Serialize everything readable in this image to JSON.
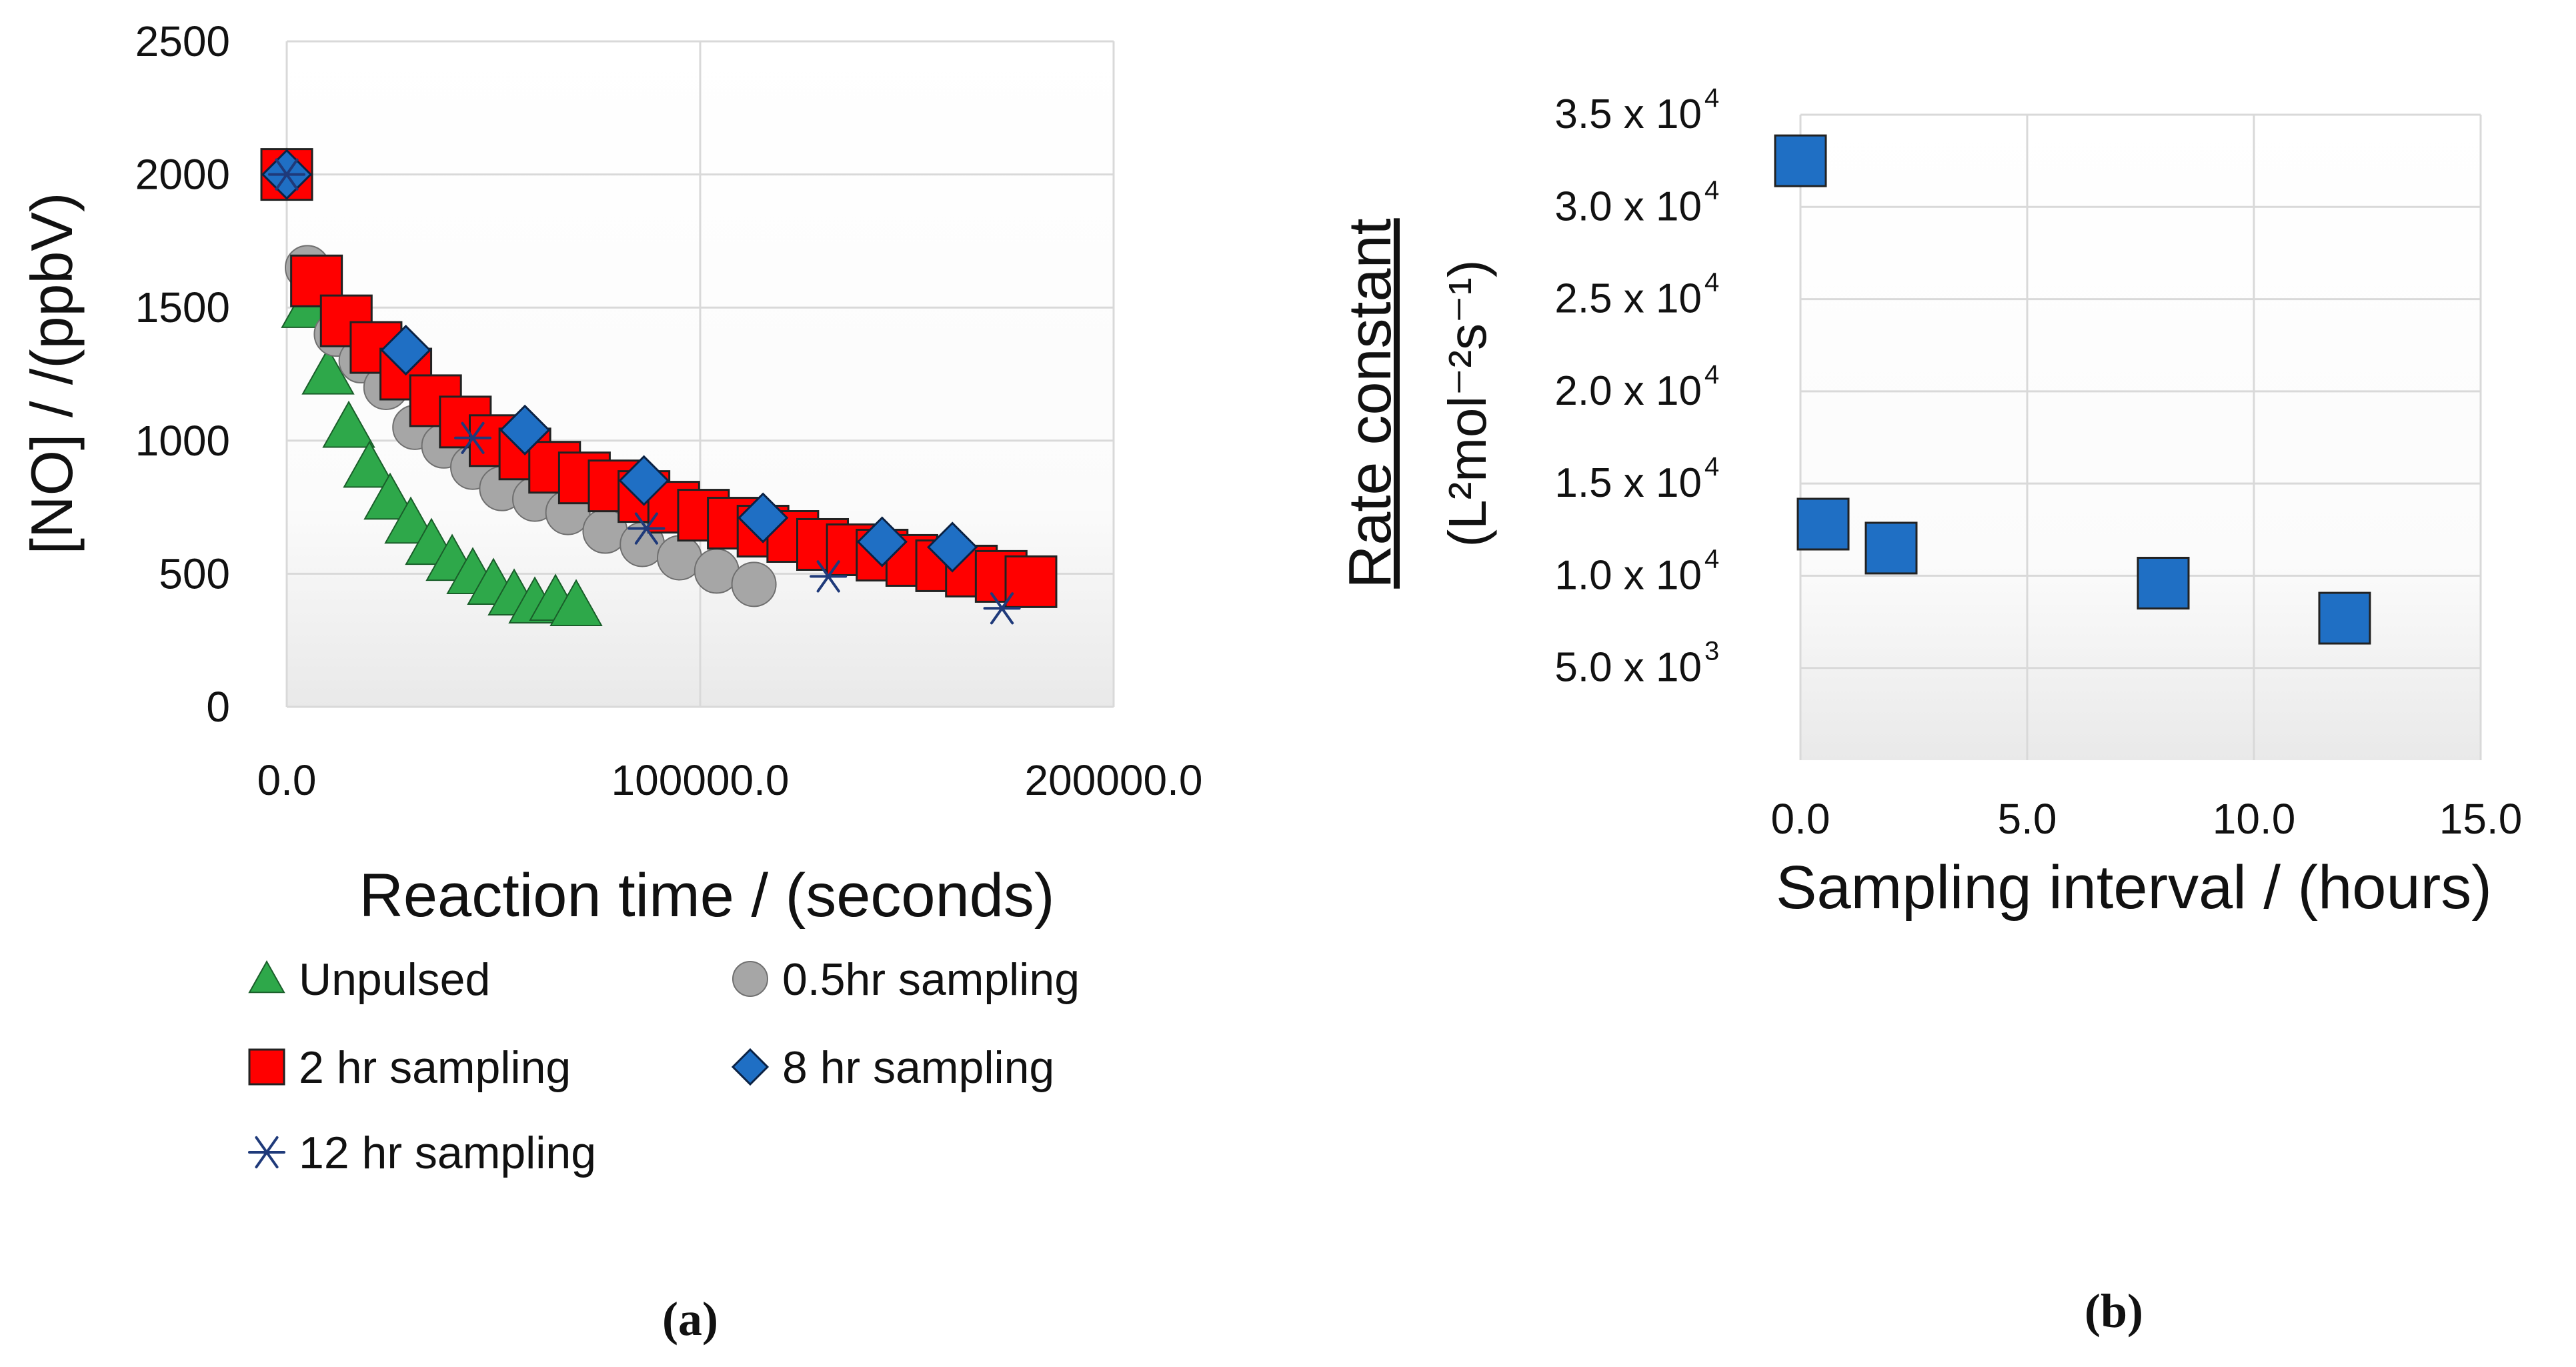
{
  "chart_data": [
    {
      "type": "scatter",
      "panel_label": "(a)",
      "title": "",
      "xlabel": "Reaction time / (seconds)",
      "ylabel": "[NO] / /(ppbV)",
      "xlim": [
        0,
        200000
      ],
      "ylim": [
        0,
        2500
      ],
      "xticks": [
        0,
        100000,
        200000
      ],
      "xtick_labels": [
        "0.0",
        "100000.0",
        "200000.0"
      ],
      "yticks": [
        0,
        500,
        1000,
        1500,
        2000,
        2500
      ],
      "ytick_labels": [
        "0",
        "500",
        "1000",
        "1500",
        "2000",
        "2500"
      ],
      "grid": true,
      "legend_position": "bottom",
      "series": [
        {
          "name": "Unpulsed",
          "marker": "triangle",
          "color": "#2EA84A",
          "x": [
            0,
            5000,
            10000,
            15000,
            20000,
            25000,
            30000,
            35000,
            40000,
            45000,
            50000,
            55000,
            60000,
            65000,
            70000
          ],
          "y": [
            2000,
            1500,
            1250,
            1050,
            900,
            780,
            690,
            610,
            550,
            500,
            460,
            420,
            390,
            400,
            380
          ]
        },
        {
          "name": "0.5hr sampling",
          "marker": "circle",
          "color": "#A6A6A6",
          "x": [
            0,
            5000,
            12000,
            18000,
            24000,
            31000,
            38000,
            45000,
            52000,
            60000,
            68000,
            77000,
            86000,
            95000,
            104000,
            113000
          ],
          "y": [
            2000,
            1650,
            1400,
            1300,
            1200,
            1050,
            980,
            900,
            820,
            780,
            730,
            660,
            610,
            560,
            510,
            460
          ]
        },
        {
          "name": "2 hr sampling",
          "marker": "square",
          "color": "#FF0000",
          "x": [
            0,
            7200,
            14400,
            21600,
            28800,
            36000,
            43200,
            50400,
            57600,
            64800,
            72000,
            79200,
            86400,
            93600,
            100800,
            108000,
            115200,
            122400,
            129600,
            136800,
            144000,
            151200,
            158400,
            165600,
            172800,
            180000
          ],
          "y": [
            2000,
            1600,
            1450,
            1350,
            1250,
            1150,
            1070,
            1000,
            950,
            900,
            860,
            830,
            790,
            750,
            720,
            690,
            660,
            640,
            610,
            590,
            570,
            550,
            530,
            510,
            490,
            470
          ]
        },
        {
          "name": "8 hr sampling",
          "marker": "diamond",
          "color": "#1F6FC4",
          "x": [
            0,
            28800,
            57600,
            86400,
            115200,
            144000,
            161000
          ],
          "y": [
            2000,
            1340,
            1040,
            850,
            710,
            620,
            600
          ]
        },
        {
          "name": "12 hr sampling",
          "marker": "asterisk",
          "color": "#1F3A7A",
          "x": [
            0,
            45000,
            87000,
            131000,
            173000
          ],
          "y": [
            2000,
            1010,
            670,
            490,
            370
          ]
        }
      ]
    },
    {
      "type": "scatter",
      "panel_label": "(b)",
      "title": "",
      "xlabel": "Sampling interval / (hours)",
      "ylabel_top": "Rate constant",
      "ylabel_units": "(L²mol⁻²s⁻¹)",
      "xlim": [
        0,
        15
      ],
      "ylim": [
        0,
        35000
      ],
      "xticks": [
        0,
        5,
        10,
        15
      ],
      "xtick_labels": [
        "0.0",
        "5.0",
        "10.0",
        "15.0"
      ],
      "yticks": [
        5000,
        10000,
        15000,
        20000,
        25000,
        30000,
        35000
      ],
      "ytick_mantissa": [
        "5.0 x 10",
        "1.0 x 10",
        "1.5 x 10",
        "2.0 x 10",
        "2.5 x 10",
        "3.0 x 10",
        "3.5 x 10"
      ],
      "ytick_exponent": [
        "3",
        "4",
        "4",
        "4",
        "4",
        "4",
        "4"
      ],
      "grid": true,
      "series": [
        {
          "name": "Rate constant",
          "marker": "square",
          "color": "#1F6FC4",
          "x": [
            0,
            0.5,
            2,
            8,
            12
          ],
          "y": [
            32500,
            12800,
            11500,
            9600,
            7700
          ]
        }
      ]
    }
  ]
}
